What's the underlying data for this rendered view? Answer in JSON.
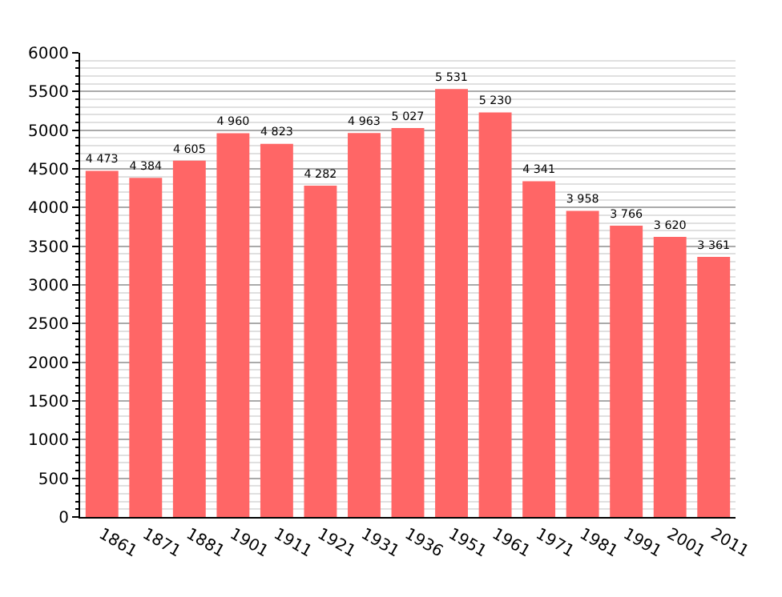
{
  "chart_data": {
    "type": "bar",
    "categories": [
      "1861",
      "1871",
      "1881",
      "1901",
      "1911",
      "1921",
      "1931",
      "1936",
      "1951",
      "1961",
      "1971",
      "1981",
      "1991",
      "2001",
      "2011"
    ],
    "values": [
      4473,
      4384,
      4605,
      4960,
      4823,
      4282,
      4963,
      5027,
      5531,
      5230,
      4341,
      3958,
      3766,
      3620,
      3361
    ],
    "value_labels": [
      "4 473",
      "4 384",
      "4 605",
      "4 960",
      "4 823",
      "4 282",
      "4 963",
      "5 027",
      "5 531",
      "5 230",
      "4 341",
      "3 958",
      "3 766",
      "3 620",
      "3 361"
    ],
    "color": "#ff6666",
    "ylim": [
      0,
      6000
    ],
    "yticks": [
      0,
      500,
      1000,
      1500,
      2000,
      2500,
      3000,
      3500,
      4000,
      4500,
      5000,
      5500,
      6000
    ],
    "grid": true,
    "legend": false
  }
}
